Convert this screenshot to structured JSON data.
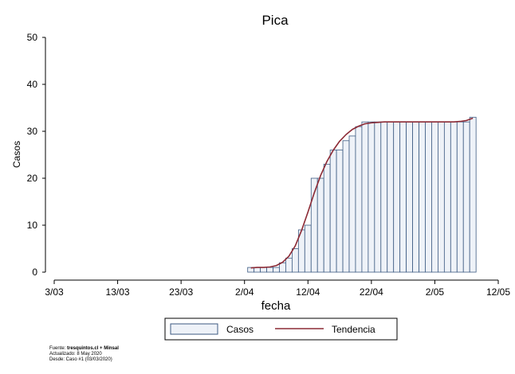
{
  "chart_data": {
    "type": "bar",
    "title": "Pica",
    "xlabel": "fecha",
    "ylabel": "Casos",
    "ylim": [
      0,
      50
    ],
    "yticks": [
      "0",
      "10",
      "20",
      "30",
      "40",
      "50"
    ],
    "xticks": [
      "3/03",
      "13/03",
      "23/03",
      "2/04",
      "12/04",
      "22/04",
      "2/05",
      "12/05"
    ],
    "xticks_day_offset": [
      0,
      10,
      20,
      30,
      40,
      50,
      60,
      70
    ],
    "x_range_days": [
      0,
      70
    ],
    "bar_start_day": 31,
    "bar_dates": [
      "3/04",
      "4/04",
      "5/04",
      "6/04",
      "7/04",
      "8/04",
      "9/04",
      "10/04",
      "11/04",
      "12/04",
      "13/04",
      "14/04",
      "15/04",
      "16/04",
      "17/04",
      "18/04",
      "19/04",
      "20/04",
      "21/04",
      "22/04",
      "23/04",
      "24/04",
      "25/04",
      "26/04",
      "27/04",
      "28/04",
      "29/04",
      "30/04",
      "1/05",
      "2/05",
      "3/05",
      "4/05",
      "5/05",
      "6/05",
      "7/05",
      "8/05"
    ],
    "series": [
      {
        "name": "Casos",
        "values": [
          1,
          1,
          1,
          1,
          1,
          2,
          3,
          5,
          9,
          10,
          20,
          20,
          23,
          26,
          26,
          28,
          29,
          31,
          32,
          32,
          32,
          32,
          32,
          32,
          32,
          32,
          32,
          32,
          32,
          32,
          32,
          32,
          32,
          32,
          32,
          33
        ],
        "fill": "#eef2f8",
        "stroke": "#3c5a82"
      },
      {
        "name": "Tendencia",
        "values": [
          0.9,
          1.0,
          1.0,
          1.1,
          1.4,
          2.1,
          3.4,
          5.6,
          8.9,
          12.8,
          16.9,
          20.6,
          23.6,
          26.0,
          27.9,
          29.3,
          30.4,
          31.1,
          31.6,
          31.8,
          31.9,
          32.0,
          32.0,
          32.0,
          32.0,
          32.0,
          32.0,
          32.0,
          32.0,
          32.0,
          32.0,
          32.0,
          32.0,
          32.1,
          32.3,
          32.8
        ],
        "color": "#8c2a35"
      }
    ],
    "legend": {
      "placement": "bottom-center",
      "items": [
        "Casos",
        "Tendencia"
      ]
    },
    "grid": false
  },
  "footer": {
    "source_prefix": "Fuente: ",
    "source_bold": "tresquintos.cl + Minsal",
    "updated": "Actualizado: 8 May 2020",
    "since": "Desde: Caso #1  (03/03/2020)"
  }
}
